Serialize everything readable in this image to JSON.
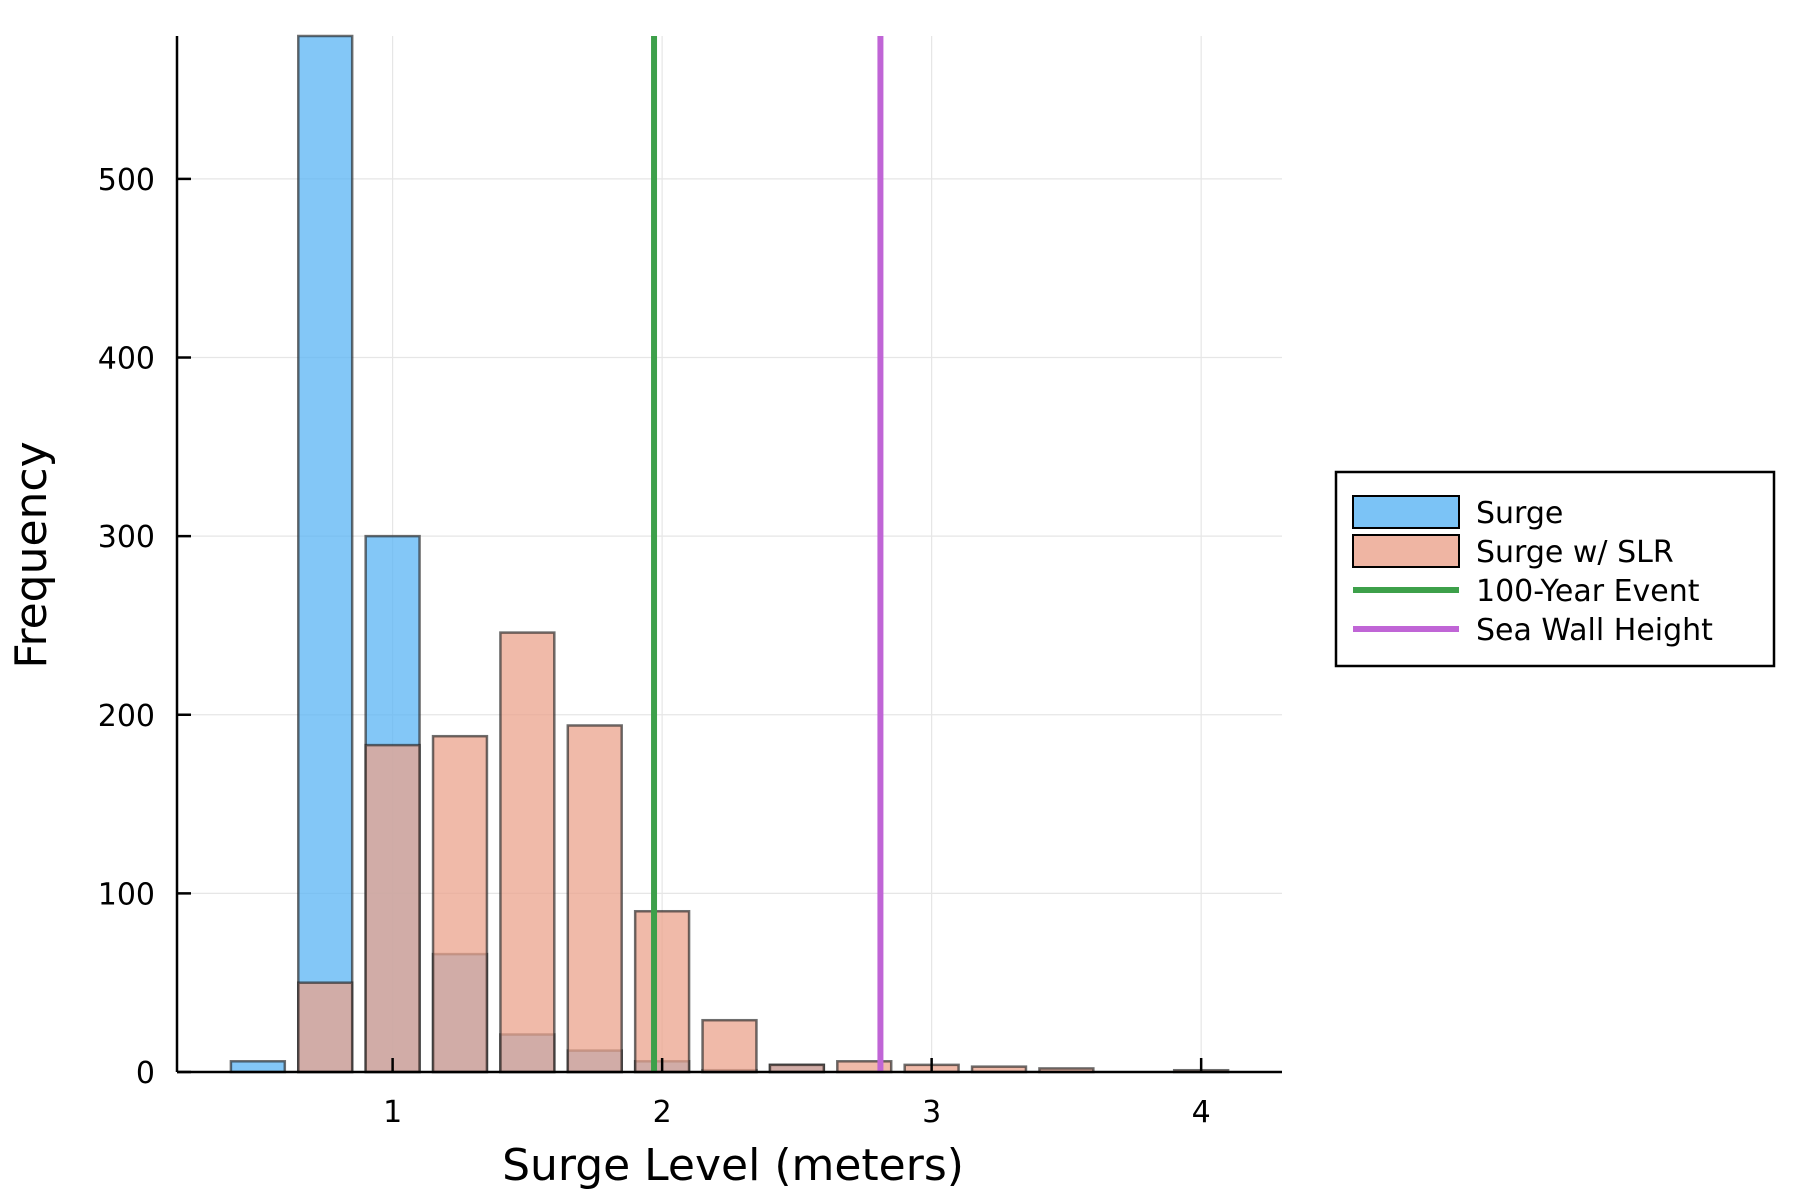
{
  "chart_data": {
    "type": "bar",
    "title": "",
    "xlabel": "Surge Level (meters)",
    "ylabel": "Frequency",
    "xlim": [
      0.2,
      4.3
    ],
    "ylim": [
      0,
      580
    ],
    "xticks": [
      1,
      2,
      3,
      4
    ],
    "yticks": [
      0,
      100,
      200,
      300,
      400,
      500
    ],
    "grid": true,
    "legend_position": "right, outside plot",
    "bin_width": 0.25,
    "bar_width": 0.2,
    "series": [
      {
        "name": "Surge",
        "color": "#5AB4F4",
        "x": [
          0.5,
          0.75,
          1.0,
          1.25,
          1.5,
          1.75,
          2.0,
          2.25,
          2.5
        ],
        "values": [
          6,
          580,
          300,
          66,
          21,
          12,
          6,
          1,
          4
        ]
      },
      {
        "name": "Surge w/ SLR",
        "color": "#EBA38C",
        "x": [
          0.75,
          1.0,
          1.25,
          1.5,
          1.75,
          2.0,
          2.25,
          2.5,
          2.75,
          3.0,
          3.25,
          3.5,
          4.0
        ],
        "values": [
          50,
          183,
          188,
          246,
          194,
          90,
          29,
          4,
          6,
          4,
          3,
          2,
          1
        ]
      }
    ],
    "vlines": [
      {
        "name": "100-Year Event",
        "x": 1.97,
        "color": "#3DA04A"
      },
      {
        "name": "Sea Wall Height",
        "x": 2.81,
        "color": "#C065D6"
      }
    ]
  }
}
